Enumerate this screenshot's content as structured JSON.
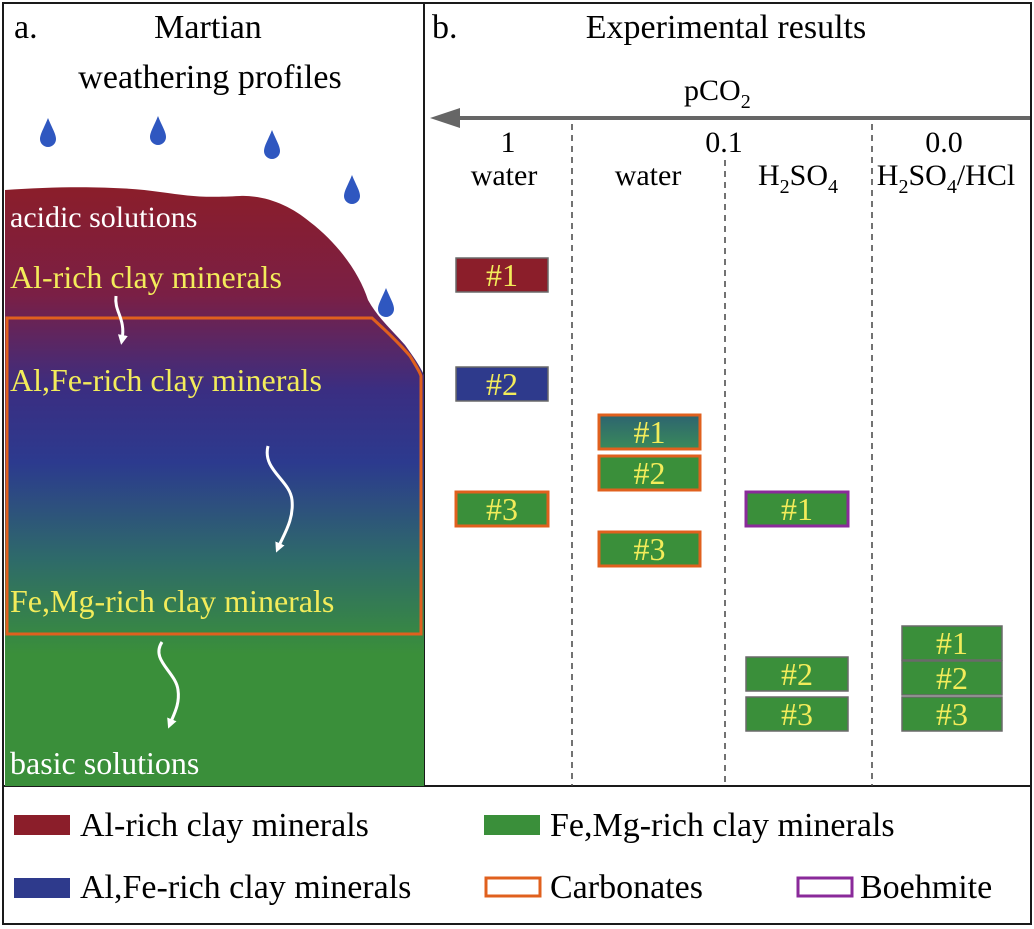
{
  "panel_a": {
    "letter": "a.",
    "title_line1": "Martian",
    "title_line2": "weathering profiles",
    "top_label": "acidic solutions",
    "bottom_label": "basic solutions",
    "zones": [
      "Al-rich clay minerals",
      "Al,Fe-rich clay minerals",
      "Fe,Mg-rich clay minerals"
    ]
  },
  "panel_b": {
    "letter": "b.",
    "title": "Experimental results",
    "axis_label": "pCO",
    "axis_label_sub": "2",
    "pco2_values": [
      "1",
      "0.1",
      "0.0"
    ],
    "columns": [
      {
        "label": "water"
      },
      {
        "label": "water"
      },
      {
        "label_parts": [
          [
            "H",
            ""
          ],
          [
            "2",
            "sub"
          ],
          [
            "SO",
            ""
          ],
          [
            "4",
            "sub"
          ]
        ]
      },
      {
        "label_parts": [
          [
            "H",
            ""
          ],
          [
            "2",
            "sub"
          ],
          [
            "SO",
            ""
          ],
          [
            "4",
            "sub"
          ],
          [
            "/HCl",
            ""
          ]
        ]
      }
    ],
    "samples": [
      {
        "col": 0,
        "label": "#1",
        "fill": "al",
        "border": "none"
      },
      {
        "col": 0,
        "label": "#2",
        "fill": "alfe",
        "border": "none"
      },
      {
        "col": 0,
        "label": "#3",
        "fill": "femg",
        "border": "carbonates"
      },
      {
        "col": 1,
        "label": "#1",
        "fill": "alfe-femg",
        "border": "carbonates"
      },
      {
        "col": 1,
        "label": "#2",
        "fill": "femg",
        "border": "carbonates"
      },
      {
        "col": 1,
        "label": "#3",
        "fill": "femg",
        "border": "carbonates"
      },
      {
        "col": 2,
        "label": "#1",
        "fill": "femg",
        "border": "boehmite"
      },
      {
        "col": 2,
        "label": "#2",
        "fill": "femg",
        "border": "none"
      },
      {
        "col": 2,
        "label": "#3",
        "fill": "femg",
        "border": "none"
      },
      {
        "col": 3,
        "label": "#1",
        "fill": "femg",
        "border": "none"
      },
      {
        "col": 3,
        "label": "#2",
        "fill": "femg",
        "border": "none"
      },
      {
        "col": 3,
        "label": "#3",
        "fill": "femg",
        "border": "none"
      }
    ]
  },
  "legend": [
    {
      "key": "al",
      "label": "Al-rich clay minerals"
    },
    {
      "key": "femg",
      "label": "Fe,Mg-rich clay minerals"
    },
    {
      "key": "alfe",
      "label": "Al,Fe-rich clay minerals"
    },
    {
      "key": "carbonates",
      "label": "Carbonates"
    },
    {
      "key": "boehmite",
      "label": "Boehmite"
    }
  ],
  "colors": {
    "al": "#8b1e2a",
    "alfe": "#2e3a8c",
    "teal": "#2d6a5c",
    "femg": "#3a8f3a",
    "carbonates": "#e0601e",
    "boehmite": "#8a2a9a",
    "sample_text": "#f3ec5a",
    "zone_text": "#f3ec5a",
    "drop": "#2f57c0",
    "axis_arrow": "#666666"
  }
}
